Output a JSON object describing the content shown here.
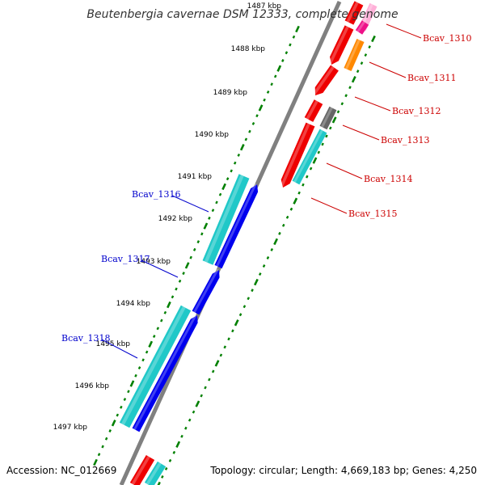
{
  "title": "Beutenbergia cavernae DSM 12333, complete genome",
  "footer": {
    "accession": "Accession: NC_012669",
    "topology": "Topology: circular; Length: 4,669,183 bp; Genes: 4,250"
  },
  "colors": {
    "backbone": "#808080",
    "tick": "#008000",
    "forward_label": "#0000cc",
    "reverse_label": "#cc0000",
    "cyan": "#20c8c8",
    "blue": "#0000ee",
    "red": "#ee0000",
    "orange": "#ff8800",
    "gray": "#666666",
    "magenta": "#ee1188",
    "pink": "#ffb0d8"
  },
  "kbp_labels": [
    "1487 kbp",
    "1488 kbp",
    "1489 kbp",
    "1490 kbp",
    "1491 kbp",
    "1492 kbp",
    "1493 kbp",
    "1494 kbp",
    "1495 kbp",
    "1496 kbp",
    "1497 kbp"
  ],
  "forward_gene_labels": [
    "Bcav_1316",
    "Bcav_1317",
    "Bcav_1318"
  ],
  "reverse_gene_labels": [
    "Bcav_1310",
    "Bcav_1311",
    "Bcav_1312",
    "Bcav_1313",
    "Bcav_1314",
    "Bcav_1315"
  ]
}
